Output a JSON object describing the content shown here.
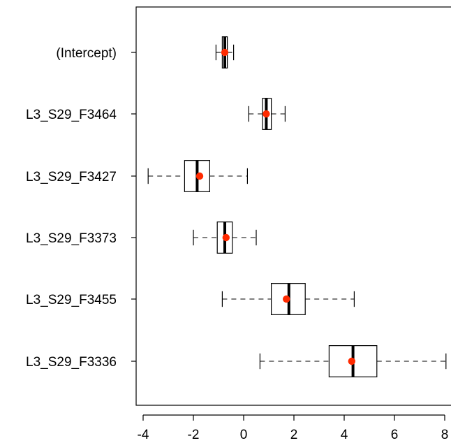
{
  "chart_data": {
    "type": "boxplot",
    "orientation": "horizontal",
    "xlim": [
      -4.2,
      8.2
    ],
    "x_ticks": [
      -4,
      -2,
      0,
      2,
      4,
      6,
      8
    ],
    "x_tick_labels": [
      "-4",
      "-2",
      "0",
      "2",
      "4",
      "6",
      "8"
    ],
    "categories": [
      "(Intercept)",
      "L3_S29_F3464",
      "L3_S29_F3427",
      "L3_S29_F3373",
      "L3_S29_F3455",
      "L3_S29_F3336"
    ],
    "boxes": [
      {
        "label": "(Intercept)",
        "whisker_low": -1.1,
        "q1": -0.85,
        "median": -0.75,
        "q3": -0.65,
        "whisker_high": -0.4,
        "mean": -0.75
      },
      {
        "label": "L3_S29_F3464",
        "whisker_low": 0.2,
        "q1": 0.75,
        "median": 0.9,
        "q3": 1.1,
        "whisker_high": 1.65,
        "mean": 0.9
      },
      {
        "label": "L3_S29_F3427",
        "whisker_low": -3.8,
        "q1": -2.35,
        "median": -1.85,
        "q3": -1.35,
        "whisker_high": 0.15,
        "mean": -1.75
      },
      {
        "label": "L3_S29_F3373",
        "whisker_low": -2.0,
        "q1": -1.05,
        "median": -0.75,
        "q3": -0.45,
        "whisker_high": 0.5,
        "mean": -0.7
      },
      {
        "label": "L3_S29_F3455",
        "whisker_low": -0.85,
        "q1": 1.1,
        "median": 1.8,
        "q3": 2.45,
        "whisker_high": 4.4,
        "mean": 1.7
      },
      {
        "label": "L3_S29_F3336",
        "whisker_low": 0.65,
        "q1": 3.4,
        "median": 4.35,
        "q3": 5.3,
        "whisker_high": 8.05,
        "mean": 4.3
      }
    ],
    "mean_marker_color": "#ff2a00",
    "box_color": "#000000",
    "grid": false,
    "title": "",
    "xlabel": "",
    "ylabel": ""
  }
}
